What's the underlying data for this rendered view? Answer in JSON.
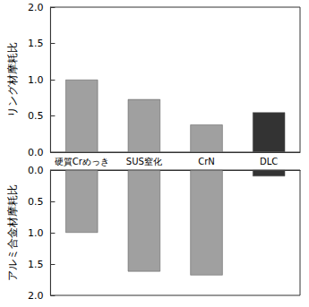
{
  "chart_data": [
    {
      "type": "bar",
      "y_label": "リング材摩耗比",
      "categories": [
        "硬質Crめっき",
        "SUS窒化",
        "CrN",
        "DLC"
      ],
      "values": [
        1.0,
        0.73,
        0.38,
        0.55
      ],
      "colors": [
        "#a0a0a0",
        "#a0a0a0",
        "#a0a0a0",
        "#333333"
      ],
      "ylim": [
        0,
        2
      ],
      "yticks": [
        {
          "value": 0,
          "label": "0.0"
        },
        {
          "value": 0.5,
          "label": "0.5"
        },
        {
          "value": 1,
          "label": "1.0"
        },
        {
          "value": 1.5,
          "label": "1.5"
        },
        {
          "value": 2,
          "label": "2.0"
        }
      ],
      "grid": false
    },
    {
      "type": "bar",
      "y_label": "アルミ合金材摩耗比",
      "categories": [
        "硬質Crめっき",
        "SUS窒化",
        "CrN",
        "DLC"
      ],
      "values": [
        1.0,
        1.62,
        1.68,
        0.1
      ],
      "colors": [
        "#a0a0a0",
        "#a0a0a0",
        "#a0a0a0",
        "#333333"
      ],
      "ylim": [
        2,
        0
      ],
      "yticks": [
        {
          "value": 0,
          "label": "0.0"
        },
        {
          "value": 0.5,
          "label": "0.5"
        },
        {
          "value": 1,
          "label": "1.0"
        },
        {
          "value": 1.5,
          "label": "1.5"
        },
        {
          "value": 2,
          "label": "2.0"
        }
      ],
      "grid": false,
      "tick_labels": "y"
    }
  ]
}
